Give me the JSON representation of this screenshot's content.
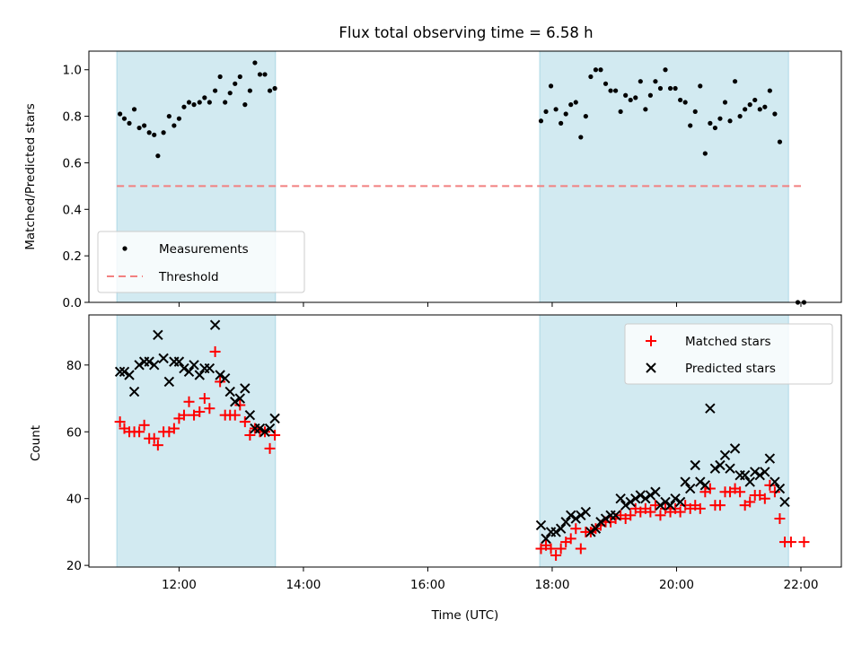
{
  "chart_data": [
    {
      "type": "scatter",
      "title": "Flux total observing time = 6.58 h",
      "ylabel": "Matched/Predicted stars",
      "xlabel": "",
      "ylim": [
        0,
        1.08
      ],
      "yticks": [
        "0.0",
        "0.2",
        "0.4",
        "0.6",
        "0.8",
        "1.0"
      ],
      "xlim": [
        10.55,
        22.65
      ],
      "grid": false,
      "legend_position": "lower-left",
      "shaded_intervals_h": [
        [
          11.0,
          13.55
        ],
        [
          17.8,
          21.8
        ]
      ],
      "threshold": {
        "name": "Threshold",
        "value": 0.5,
        "x_range_h": [
          11.0,
          22.0
        ],
        "color": "#f28080"
      },
      "series": [
        {
          "name": "Measurements",
          "color": "#000000",
          "points_h": [
            [
              11.05,
              0.81
            ],
            [
              11.12,
              0.79
            ],
            [
              11.2,
              0.77
            ],
            [
              11.28,
              0.83
            ],
            [
              11.36,
              0.75
            ],
            [
              11.44,
              0.76
            ],
            [
              11.52,
              0.73
            ],
            [
              11.6,
              0.72
            ],
            [
              11.66,
              0.63
            ],
            [
              11.75,
              0.73
            ],
            [
              11.84,
              0.8
            ],
            [
              11.92,
              0.76
            ],
            [
              12.0,
              0.79
            ],
            [
              12.08,
              0.84
            ],
            [
              12.16,
              0.86
            ],
            [
              12.24,
              0.85
            ],
            [
              12.33,
              0.86
            ],
            [
              12.41,
              0.88
            ],
            [
              12.49,
              0.86
            ],
            [
              12.58,
              0.91
            ],
            [
              12.66,
              0.97
            ],
            [
              12.74,
              0.86
            ],
            [
              12.82,
              0.9
            ],
            [
              12.9,
              0.94
            ],
            [
              12.98,
              0.97
            ],
            [
              13.06,
              0.85
            ],
            [
              13.14,
              0.91
            ],
            [
              13.22,
              1.03
            ],
            [
              13.3,
              0.98
            ],
            [
              13.38,
              0.98
            ],
            [
              13.46,
              0.91
            ],
            [
              13.54,
              0.92
            ],
            [
              17.82,
              0.78
            ],
            [
              17.9,
              0.82
            ],
            [
              17.98,
              0.93
            ],
            [
              18.06,
              0.83
            ],
            [
              18.14,
              0.77
            ],
            [
              18.22,
              0.81
            ],
            [
              18.3,
              0.85
            ],
            [
              18.38,
              0.86
            ],
            [
              18.46,
              0.71
            ],
            [
              18.54,
              0.8
            ],
            [
              18.62,
              0.97
            ],
            [
              18.7,
              1.0
            ],
            [
              18.78,
              1.0
            ],
            [
              18.86,
              0.94
            ],
            [
              18.94,
              0.91
            ],
            [
              19.02,
              0.91
            ],
            [
              19.1,
              0.82
            ],
            [
              19.18,
              0.89
            ],
            [
              19.26,
              0.87
            ],
            [
              19.34,
              0.88
            ],
            [
              19.42,
              0.95
            ],
            [
              19.5,
              0.83
            ],
            [
              19.58,
              0.89
            ],
            [
              19.66,
              0.95
            ],
            [
              19.74,
              0.92
            ],
            [
              19.82,
              1.0
            ],
            [
              19.9,
              0.92
            ],
            [
              19.98,
              0.92
            ],
            [
              20.06,
              0.87
            ],
            [
              20.14,
              0.86
            ],
            [
              20.22,
              0.76
            ],
            [
              20.3,
              0.82
            ],
            [
              20.38,
              0.93
            ],
            [
              20.46,
              0.64
            ],
            [
              20.54,
              0.77
            ],
            [
              20.62,
              0.75
            ],
            [
              20.7,
              0.79
            ],
            [
              20.78,
              0.86
            ],
            [
              20.86,
              0.78
            ],
            [
              20.94,
              0.95
            ],
            [
              21.02,
              0.8
            ],
            [
              21.1,
              0.83
            ],
            [
              21.18,
              0.85
            ],
            [
              21.26,
              0.87
            ],
            [
              21.34,
              0.83
            ],
            [
              21.42,
              0.84
            ],
            [
              21.5,
              0.91
            ],
            [
              21.58,
              0.81
            ],
            [
              21.66,
              0.69
            ],
            [
              21.95,
              0.0
            ],
            [
              22.05,
              0.0
            ]
          ]
        }
      ],
      "legend": [
        "Measurements",
        "Threshold"
      ]
    },
    {
      "type": "scatter",
      "title": "",
      "ylabel": "Count",
      "xlabel": "Time (UTC)",
      "ylim": [
        19.5,
        95
      ],
      "yticks": [
        "20",
        "40",
        "60",
        "80"
      ],
      "xlim": [
        10.55,
        22.65
      ],
      "xticks": [
        "12:00",
        "14:00",
        "16:00",
        "18:00",
        "20:00",
        "22:00"
      ],
      "grid": false,
      "legend_position": "upper-right",
      "shaded_intervals_h": [
        [
          11.0,
          13.55
        ],
        [
          17.8,
          21.8
        ]
      ],
      "series": [
        {
          "name": "Matched stars",
          "marker": "plus",
          "color": "#ff0000",
          "points_h": [
            [
              11.05,
              63
            ],
            [
              11.12,
              61
            ],
            [
              11.2,
              60
            ],
            [
              11.28,
              60
            ],
            [
              11.36,
              60
            ],
            [
              11.44,
              62
            ],
            [
              11.52,
              58
            ],
            [
              11.6,
              58
            ],
            [
              11.66,
              56
            ],
            [
              11.75,
              60
            ],
            [
              11.84,
              60
            ],
            [
              11.92,
              61
            ],
            [
              12.0,
              64
            ],
            [
              12.08,
              65
            ],
            [
              12.16,
              69
            ],
            [
              12.24,
              65
            ],
            [
              12.33,
              66
            ],
            [
              12.41,
              70
            ],
            [
              12.49,
              67
            ],
            [
              12.58,
              84
            ],
            [
              12.66,
              75
            ],
            [
              12.74,
              65
            ],
            [
              12.82,
              65
            ],
            [
              12.9,
              65
            ],
            [
              12.98,
              68
            ],
            [
              13.06,
              63
            ],
            [
              13.14,
              59
            ],
            [
              13.22,
              61
            ],
            [
              13.3,
              60
            ],
            [
              13.38,
              60
            ],
            [
              13.46,
              55
            ],
            [
              13.54,
              59
            ],
            [
              17.82,
              25
            ],
            [
              17.9,
              26
            ],
            [
              17.98,
              25
            ],
            [
              18.06,
              23
            ],
            [
              18.14,
              25
            ],
            [
              18.22,
              27
            ],
            [
              18.3,
              28
            ],
            [
              18.38,
              31
            ],
            [
              18.46,
              25
            ],
            [
              18.54,
              30
            ],
            [
              18.62,
              30
            ],
            [
              18.7,
              31
            ],
            [
              18.78,
              32
            ],
            [
              18.86,
              33
            ],
            [
              18.94,
              33
            ],
            [
              19.02,
              34
            ],
            [
              19.1,
              35
            ],
            [
              19.18,
              34
            ],
            [
              19.26,
              35
            ],
            [
              19.34,
              37
            ],
            [
              19.42,
              36
            ],
            [
              19.5,
              37
            ],
            [
              19.58,
              36
            ],
            [
              19.66,
              38
            ],
            [
              19.74,
              35
            ],
            [
              19.82,
              37
            ],
            [
              19.9,
              36
            ],
            [
              19.98,
              37
            ],
            [
              20.06,
              36
            ],
            [
              20.14,
              38
            ],
            [
              20.22,
              37
            ],
            [
              20.3,
              38
            ],
            [
              20.38,
              37
            ],
            [
              20.46,
              42
            ],
            [
              20.54,
              43
            ],
            [
              20.62,
              38
            ],
            [
              20.7,
              38
            ],
            [
              20.78,
              42
            ],
            [
              20.86,
              42
            ],
            [
              20.94,
              43
            ],
            [
              21.02,
              42
            ],
            [
              21.1,
              38
            ],
            [
              21.18,
              39
            ],
            [
              21.26,
              41
            ],
            [
              21.34,
              41
            ],
            [
              21.42,
              40
            ],
            [
              21.5,
              44
            ],
            [
              21.58,
              42
            ],
            [
              21.66,
              34
            ],
            [
              21.74,
              27
            ],
            [
              21.84,
              27
            ],
            [
              22.05,
              27
            ]
          ]
        },
        {
          "name": "Predicted stars",
          "marker": "x",
          "color": "#000000",
          "points_h": [
            [
              11.05,
              78
            ],
            [
              11.12,
              78
            ],
            [
              11.2,
              77
            ],
            [
              11.28,
              72
            ],
            [
              11.36,
              80
            ],
            [
              11.44,
              81
            ],
            [
              11.52,
              81
            ],
            [
              11.6,
              80
            ],
            [
              11.66,
              89
            ],
            [
              11.75,
              82
            ],
            [
              11.84,
              75
            ],
            [
              11.92,
              81
            ],
            [
              12.0,
              81
            ],
            [
              12.08,
              79
            ],
            [
              12.16,
              78
            ],
            [
              12.24,
              80
            ],
            [
              12.33,
              77
            ],
            [
              12.41,
              79
            ],
            [
              12.49,
              79
            ],
            [
              12.58,
              92
            ],
            [
              12.66,
              77
            ],
            [
              12.74,
              76
            ],
            [
              12.82,
              72
            ],
            [
              12.9,
              69
            ],
            [
              12.98,
              70
            ],
            [
              13.06,
              73
            ],
            [
              13.14,
              65
            ],
            [
              13.22,
              61
            ],
            [
              13.3,
              61
            ],
            [
              13.38,
              60
            ],
            [
              13.46,
              61
            ],
            [
              13.54,
              64
            ],
            [
              17.82,
              32
            ],
            [
              17.9,
              28
            ],
            [
              17.98,
              30
            ],
            [
              18.06,
              30
            ],
            [
              18.14,
              31
            ],
            [
              18.22,
              33
            ],
            [
              18.3,
              35
            ],
            [
              18.38,
              34
            ],
            [
              18.46,
              35
            ],
            [
              18.54,
              36
            ],
            [
              18.62,
              30
            ],
            [
              18.7,
              31
            ],
            [
              18.78,
              33
            ],
            [
              18.86,
              34
            ],
            [
              18.94,
              35
            ],
            [
              19.02,
              35
            ],
            [
              19.1,
              40
            ],
            [
              19.18,
              38
            ],
            [
              19.26,
              39
            ],
            [
              19.34,
              40
            ],
            [
              19.42,
              41
            ],
            [
              19.5,
              40
            ],
            [
              19.58,
              41
            ],
            [
              19.66,
              42
            ],
            [
              19.74,
              38
            ],
            [
              19.82,
              39
            ],
            [
              19.9,
              38
            ],
            [
              19.98,
              40
            ],
            [
              20.06,
              39
            ],
            [
              20.14,
              45
            ],
            [
              20.22,
              43
            ],
            [
              20.3,
              50
            ],
            [
              20.38,
              45
            ],
            [
              20.46,
              44
            ],
            [
              20.54,
              67
            ],
            [
              20.62,
              49
            ],
            [
              20.7,
              50
            ],
            [
              20.78,
              53
            ],
            [
              20.86,
              49
            ],
            [
              20.94,
              55
            ],
            [
              21.02,
              47
            ],
            [
              21.1,
              47
            ],
            [
              21.18,
              45
            ],
            [
              21.26,
              48
            ],
            [
              21.34,
              47
            ],
            [
              21.42,
              48
            ],
            [
              21.5,
              52
            ],
            [
              21.58,
              45
            ],
            [
              21.66,
              43
            ],
            [
              21.74,
              39
            ]
          ]
        }
      ],
      "legend": [
        "Matched stars",
        "Predicted stars"
      ]
    }
  ],
  "colors": {
    "shade": "#add8e6",
    "threshold": "#f28080",
    "matched": "#ff0000",
    "predicted": "#000000",
    "measurements": "#000000"
  }
}
